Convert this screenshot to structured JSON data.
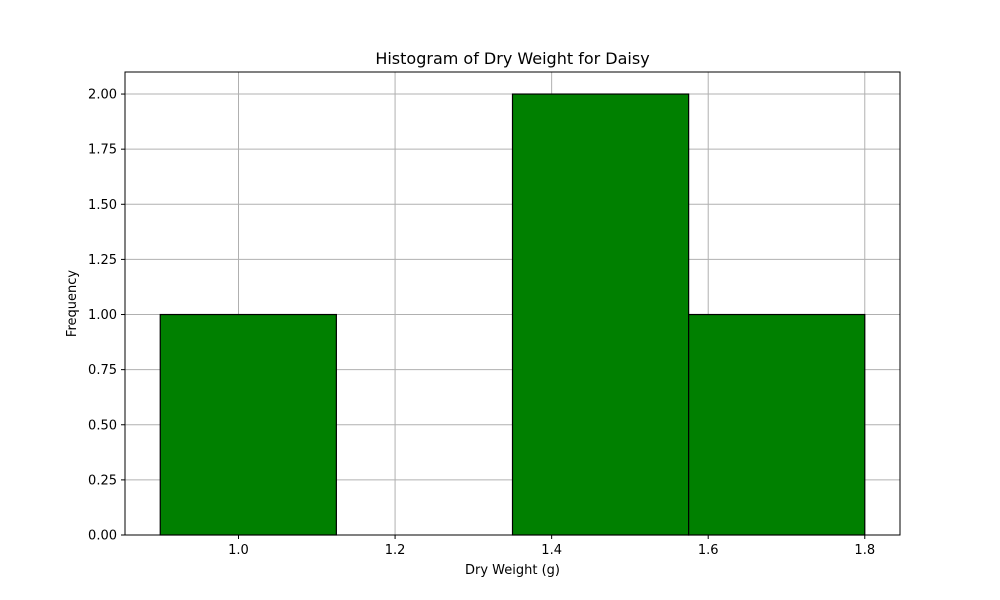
{
  "chart_data": {
    "type": "bar",
    "title": "Histogram of Dry Weight for Daisy",
    "xlabel": "Dry Weight (g)",
    "ylabel": "Frequency",
    "bins": [
      {
        "start": 0.9,
        "end": 1.125,
        "count": 1
      },
      {
        "start": 1.125,
        "end": 1.35,
        "count": 0
      },
      {
        "start": 1.35,
        "end": 1.575,
        "count": 2
      },
      {
        "start": 1.575,
        "end": 1.8,
        "count": 1
      }
    ],
    "xlim": [
      0.855,
      1.845
    ],
    "ylim": [
      0,
      2.1
    ],
    "xticks": [
      {
        "value": 1.0,
        "label": "1.0"
      },
      {
        "value": 1.2,
        "label": "1.2"
      },
      {
        "value": 1.4,
        "label": "1.4"
      },
      {
        "value": 1.6,
        "label": "1.6"
      },
      {
        "value": 1.8,
        "label": "1.8"
      }
    ],
    "yticks": [
      {
        "value": 0.0,
        "label": "0.00"
      },
      {
        "value": 0.25,
        "label": "0.25"
      },
      {
        "value": 0.5,
        "label": "0.50"
      },
      {
        "value": 0.75,
        "label": "0.75"
      },
      {
        "value": 1.0,
        "label": "1.00"
      },
      {
        "value": 1.25,
        "label": "1.25"
      },
      {
        "value": 1.5,
        "label": "1.50"
      },
      {
        "value": 1.75,
        "label": "1.75"
      },
      {
        "value": 2.0,
        "label": "2.00"
      }
    ],
    "grid": true,
    "bar_color": "#008000",
    "edge_color": "#000000"
  }
}
